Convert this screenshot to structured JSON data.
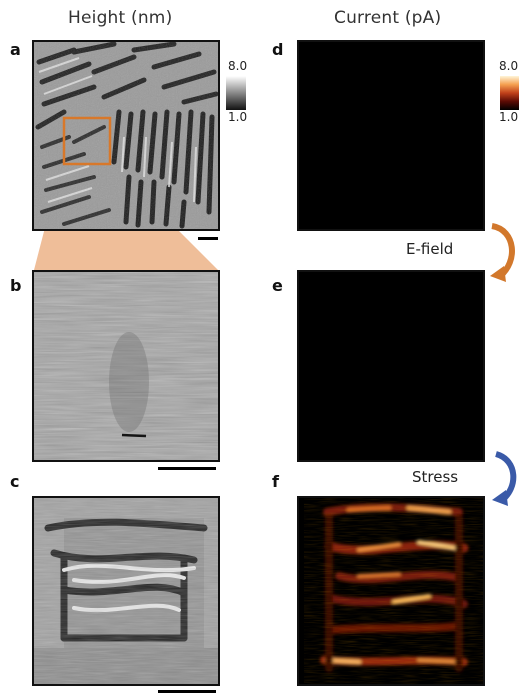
{
  "figure": {
    "left_column_title": "Height (nm)",
    "right_column_title": "Current (pA)",
    "panels": {
      "a": {
        "letter": "a"
      },
      "b": {
        "letter": "b"
      },
      "c": {
        "letter": "c"
      },
      "d": {
        "letter": "d"
      },
      "e": {
        "letter": "e"
      },
      "f": {
        "letter": "f"
      }
    },
    "height_colorbar": {
      "max": "8.0",
      "min": "1.0",
      "scheme": "grayscale"
    },
    "current_colorbar": {
      "max": "8.0",
      "min": "1.0",
      "scheme": "black-red-orange-white"
    },
    "stimuli": {
      "efield": {
        "label": "E-field",
        "color": "#d2782c"
      },
      "stress": {
        "label": "Stress",
        "color": "#3a5aa8"
      }
    },
    "accent_colors": {
      "zoom_box": "#d8782a",
      "zoom_fill": "#eaa877"
    }
  }
}
